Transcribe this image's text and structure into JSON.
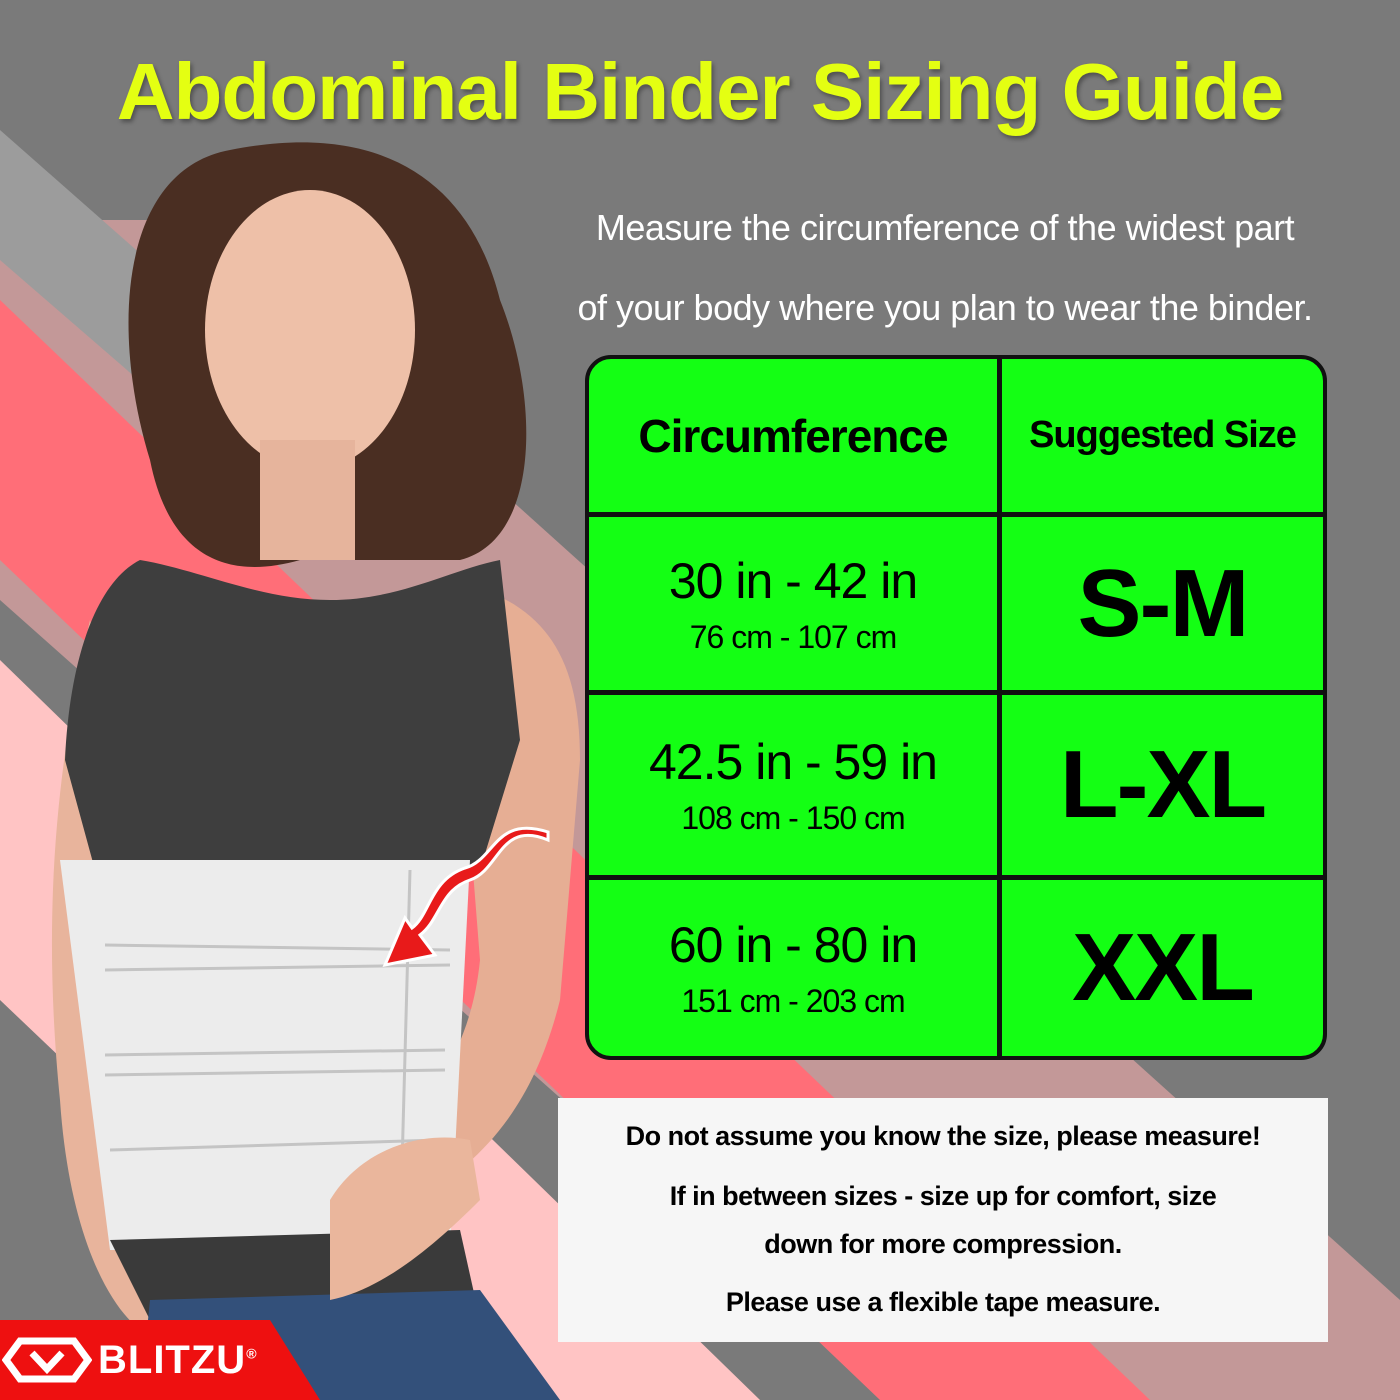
{
  "title": "Abdominal Binder Sizing Guide",
  "subtitle": [
    "Measure the circumference of the widest part",
    "of your body where you plan to wear the binder."
  ],
  "table": {
    "headers": [
      "Circumference",
      "Suggested Size"
    ],
    "rows": [
      {
        "inches": "30 in - 42 in",
        "cm": "76 cm - 107 cm",
        "size": "S-M"
      },
      {
        "inches": "42.5 in - 59 in",
        "cm": "108 cm - 150 cm",
        "size": "L-XL"
      },
      {
        "inches": "60 in - 80 in",
        "cm": "151 cm - 203 cm",
        "size": "XXL"
      }
    ]
  },
  "notes": [
    "Do not assume you know the size, please measure!",
    "If in between sizes - size up for comfort, size",
    "down for more compression.",
    "Please use a flexible tape measure."
  ],
  "brand": {
    "name": "BLITZU",
    "mark": "®"
  },
  "colors": {
    "title": "#e4ff12",
    "table": "#14ff14",
    "brand": "#ee1010",
    "arrow": "#e81a1a"
  }
}
